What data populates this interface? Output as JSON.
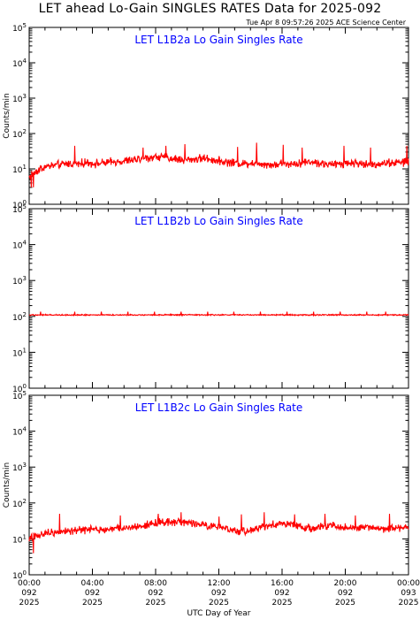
{
  "header": {
    "title": "LET ahead Lo-Gain SINGLES RATES Data for 2025-092",
    "timestamp": "Tue Apr  8 09:57:26 2025 ACE Science Center"
  },
  "colors": {
    "series": "#ff0000",
    "panel_title": "#0000ff",
    "axes": "#000000"
  },
  "chart_data": [
    {
      "type": "line",
      "title": "LET L1B2a Lo Gain Singles Rate",
      "ylabel": "Counts/min",
      "yscale": "log",
      "ylim": [
        1,
        100000
      ],
      "yticks": [
        "10^0",
        "10^1",
        "10^2",
        "10^3",
        "10^4",
        "10^5"
      ],
      "xlim": [
        "2025-092 00:00",
        "2025-093 00:00"
      ],
      "series": [
        {
          "values": [
            6,
            10,
            12,
            13,
            14,
            14,
            15,
            14,
            15,
            16,
            17,
            18,
            20,
            22,
            21,
            19,
            18,
            19,
            20,
            18,
            16,
            15,
            14,
            15,
            14,
            13,
            14,
            14,
            15,
            16,
            14,
            13,
            14,
            15,
            14,
            13,
            14,
            15,
            15,
            16
          ]
        }
      ],
      "noise": {
        "log_spread": 0.14,
        "spikes": [
          [
            0.12,
            45
          ],
          [
            0.3,
            40
          ],
          [
            0.36,
            45
          ],
          [
            0.41,
            50
          ],
          [
            0.55,
            42
          ],
          [
            0.6,
            55
          ],
          [
            0.67,
            48
          ],
          [
            0.72,
            40
          ],
          [
            0.83,
            45
          ],
          [
            0.9,
            40
          ],
          [
            0.995,
            45
          ]
        ]
      }
    },
    {
      "type": "line",
      "title": "LET L1B2b Lo Gain Singles Rate",
      "ylabel": "",
      "yscale": "log",
      "ylim": [
        1,
        100000
      ],
      "yticks": [
        "10^0",
        "10^1",
        "10^2",
        "10^3",
        "10^4",
        "10^5"
      ],
      "xlim": [
        "2025-092 00:00",
        "2025-093 00:00"
      ],
      "series": [
        {
          "values": [
            110,
            110,
            110,
            110,
            110,
            110,
            110,
            110,
            110,
            110,
            110,
            110,
            110,
            110,
            110,
            110,
            110,
            110,
            110,
            110,
            110,
            110,
            110,
            110,
            110,
            110,
            110,
            110,
            110,
            110,
            110,
            110,
            110,
            110,
            110,
            110,
            110,
            110,
            110,
            110
          ]
        }
      ],
      "noise": {
        "log_spread": 0.02,
        "spikes": [
          [
            0.03,
            135
          ],
          [
            0.12,
            135
          ],
          [
            0.19,
            135
          ],
          [
            0.26,
            135
          ],
          [
            0.33,
            135
          ],
          [
            0.4,
            135
          ],
          [
            0.47,
            135
          ],
          [
            0.54,
            135
          ],
          [
            0.61,
            135
          ],
          [
            0.68,
            135
          ],
          [
            0.75,
            135
          ],
          [
            0.82,
            135
          ],
          [
            0.89,
            135
          ],
          [
            0.94,
            135
          ]
        ]
      }
    },
    {
      "type": "line",
      "title": "LET L1B2c Lo Gain Singles Rate",
      "ylabel": "Counts/min",
      "yscale": "log",
      "ylim": [
        1,
        100000
      ],
      "yticks": [
        "10^0",
        "10^1",
        "10^2",
        "10^3",
        "10^4",
        "10^5"
      ],
      "xlim": [
        "2025-092 00:00",
        "2025-093 00:00"
      ],
      "series": [
        {
          "values": [
            10,
            13,
            15,
            16,
            17,
            17,
            18,
            18,
            19,
            20,
            20,
            21,
            24,
            28,
            30,
            30,
            28,
            27,
            24,
            22,
            19,
            17,
            16,
            18,
            21,
            25,
            27,
            24,
            22,
            20,
            22,
            24,
            21,
            20,
            21,
            22,
            20,
            19,
            20,
            21
          ]
        }
      ],
      "noise": {
        "log_spread": 0.13,
        "spikes": [
          [
            0.08,
            50
          ],
          [
            0.24,
            45
          ],
          [
            0.34,
            50
          ],
          [
            0.4,
            55
          ],
          [
            0.5,
            42
          ],
          [
            0.56,
            48
          ],
          [
            0.62,
            55
          ],
          [
            0.7,
            48
          ],
          [
            0.78,
            50
          ],
          [
            0.86,
            45
          ],
          [
            0.95,
            50
          ]
        ]
      }
    }
  ],
  "x_axis": {
    "label": "UTC Day of Year",
    "ticks": [
      {
        "time": "00:00",
        "day": "092",
        "year": "2025"
      },
      {
        "time": "04:00",
        "day": "092",
        "year": "2025"
      },
      {
        "time": "08:00",
        "day": "092",
        "year": "2025"
      },
      {
        "time": "12:00",
        "day": "092",
        "year": "2025"
      },
      {
        "time": "16:00",
        "day": "092",
        "year": "2025"
      },
      {
        "time": "20:00",
        "day": "092",
        "year": "2025"
      },
      {
        "time": "00:00",
        "day": "093",
        "year": "2025"
      }
    ]
  }
}
